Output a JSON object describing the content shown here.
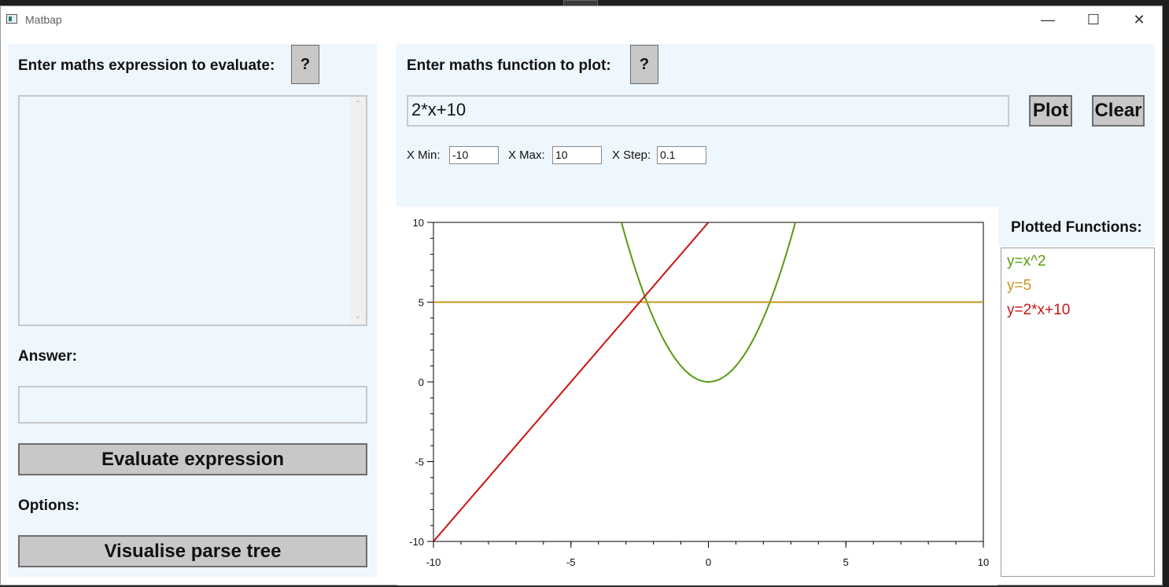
{
  "window": {
    "title": "Matbap"
  },
  "evaluate": {
    "label": "Enter maths expression to evaluate:",
    "help": "?",
    "expression_value": "",
    "answer_label": "Answer:",
    "answer_value": "",
    "evaluate_button": "Evaluate expression",
    "options_label": "Options:",
    "parse_tree_button": "Visualise parse tree"
  },
  "plot": {
    "label": "Enter maths function to plot:",
    "help": "?",
    "function_value": "2*x+10",
    "plot_button": "Plot",
    "clear_button": "Clear",
    "xmin_label": "X Min:",
    "xmin_value": "-10",
    "xmax_label": "X Max:",
    "xmax_value": "10",
    "xstep_label": "X Step:",
    "xstep_value": "0.1",
    "plotted_label": "Plotted Functions:",
    "plotted_functions": [
      {
        "label": "y=x^2",
        "color": "#5a9a10"
      },
      {
        "label": "y=5",
        "color": "#c8961c"
      },
      {
        "label": "y=2*x+10",
        "color": "#c81414"
      }
    ]
  },
  "chart_data": {
    "type": "line",
    "xlim": [
      -10,
      10
    ],
    "ylim": [
      -10,
      10
    ],
    "x_ticks": [
      -10,
      -5,
      0,
      5,
      10
    ],
    "y_ticks": [
      -10,
      -5,
      0,
      5,
      10
    ],
    "x_tick_labels": [
      "-10",
      "-5",
      "0",
      "5",
      "10"
    ],
    "y_tick_labels": [
      "-10",
      "-5",
      "0",
      "5",
      "10"
    ],
    "x_step": 0.1,
    "grid": false,
    "series": [
      {
        "expression": "x^2",
        "color": "#5a9a10"
      },
      {
        "expression": "5",
        "color": "#c8961c"
      },
      {
        "expression": "2*x+10",
        "color": "#c81414"
      }
    ]
  }
}
